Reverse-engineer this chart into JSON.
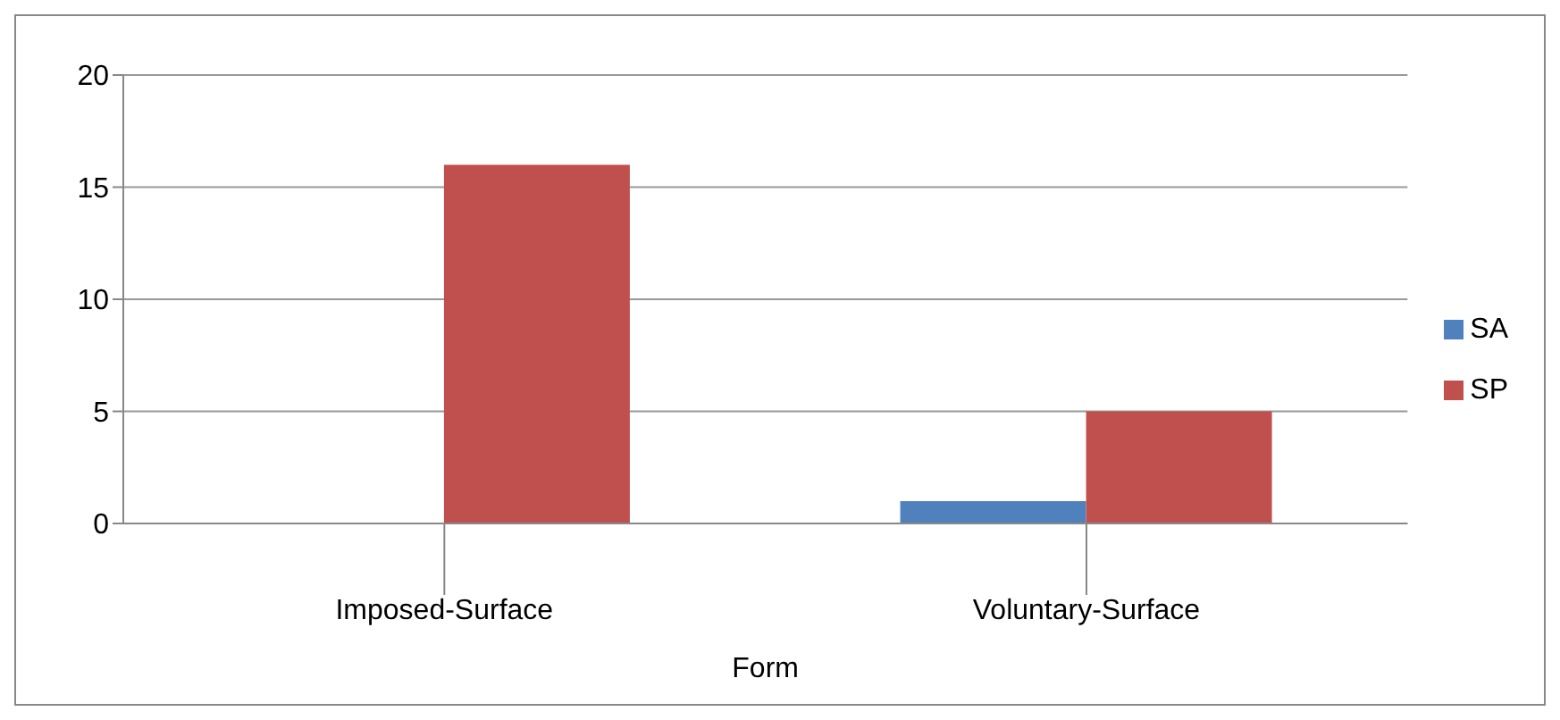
{
  "chart_data": {
    "type": "bar",
    "categories": [
      "Imposed-Surface",
      "Voluntary-Surface"
    ],
    "xlabel": "Form",
    "series": [
      {
        "name": "SA",
        "color": "#4f81bd",
        "values": [
          0,
          1
        ]
      },
      {
        "name": "SP",
        "color": "#c0504d",
        "values": [
          16,
          5
        ]
      }
    ],
    "ylim": [
      0,
      20
    ],
    "yticks": [
      0,
      5,
      10,
      15,
      20
    ],
    "grid": "y",
    "legend": "right"
  }
}
